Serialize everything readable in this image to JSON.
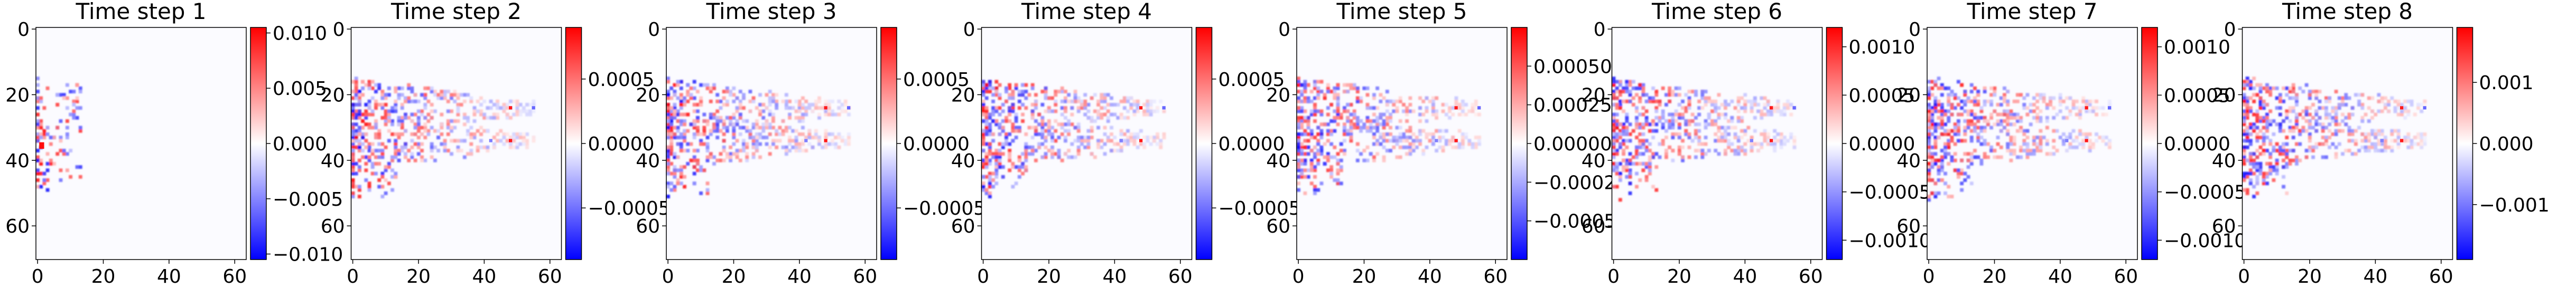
{
  "chart_data": [
    {
      "type": "heatmap",
      "title": "Time step 1",
      "xticks": [
        "0",
        "20",
        "40",
        "60"
      ],
      "yticks": [
        "0",
        "20",
        "40",
        "60"
      ],
      "colorbar_ticks": [
        "0.010",
        "0.005",
        "0.000",
        "−0.005",
        "−0.010"
      ],
      "colorbar_range": [
        -0.0105,
        0.0105
      ],
      "colormap": "bwr"
    },
    {
      "type": "heatmap",
      "title": "Time step 2",
      "xticks": [
        "0",
        "20",
        "40",
        "60"
      ],
      "yticks": [
        "0",
        "20",
        "40",
        "60"
      ],
      "colorbar_ticks": [
        "0.0005",
        "0.0000",
        "−0.0005"
      ],
      "colorbar_range": [
        -0.0009,
        0.0009
      ],
      "colormap": "bwr"
    },
    {
      "type": "heatmap",
      "title": "Time step 3",
      "xticks": [
        "0",
        "20",
        "40",
        "60"
      ],
      "yticks": [
        "0",
        "20",
        "40",
        "60"
      ],
      "colorbar_ticks": [
        "0.0005",
        "0.0000",
        "−0.0005"
      ],
      "colorbar_range": [
        -0.0009,
        0.0009
      ],
      "colormap": "bwr"
    },
    {
      "type": "heatmap",
      "title": "Time step 4",
      "xticks": [
        "0",
        "20",
        "40",
        "60"
      ],
      "yticks": [
        "0",
        "20",
        "40",
        "60"
      ],
      "colorbar_ticks": [
        "0.0005",
        "0.0000",
        "−0.0005"
      ],
      "colorbar_range": [
        -0.0009,
        0.0009
      ],
      "colormap": "bwr"
    },
    {
      "type": "heatmap",
      "title": "Time step 5",
      "xticks": [
        "0",
        "20",
        "40",
        "60"
      ],
      "yticks": [
        "0",
        "20",
        "40",
        "60"
      ],
      "colorbar_ticks": [
        "0.00050",
        "0.00025",
        "0.00000",
        "−0.00025",
        "−0.00050"
      ],
      "colorbar_range": [
        -0.00075,
        0.00075
      ],
      "colormap": "bwr"
    },
    {
      "type": "heatmap",
      "title": "Time step 6",
      "xticks": [
        "0",
        "20",
        "40",
        "60"
      ],
      "yticks": [
        "0",
        "20",
        "40",
        "60"
      ],
      "colorbar_ticks": [
        "0.0010",
        "0.0005",
        "0.0000",
        "−0.0005",
        "−0.0010"
      ],
      "colorbar_range": [
        -0.0012,
        0.0012
      ],
      "colormap": "bwr"
    },
    {
      "type": "heatmap",
      "title": "Time step 7",
      "xticks": [
        "0",
        "20",
        "40",
        "60"
      ],
      "yticks": [
        "0",
        "20",
        "40",
        "60"
      ],
      "colorbar_ticks": [
        "0.0010",
        "0.0005",
        "0.0000",
        "−0.0005",
        "−0.0010"
      ],
      "colorbar_range": [
        -0.0012,
        0.0012
      ],
      "colormap": "bwr"
    },
    {
      "type": "heatmap",
      "title": "Time step 8",
      "xticks": [
        "0",
        "20",
        "40",
        "60"
      ],
      "yticks": [
        "0",
        "20",
        "40",
        "60"
      ],
      "colorbar_ticks": [
        "0.001",
        "0.000",
        "−0.001"
      ],
      "colorbar_range": [
        -0.0019,
        0.0019
      ],
      "colormap": "bwr"
    }
  ]
}
